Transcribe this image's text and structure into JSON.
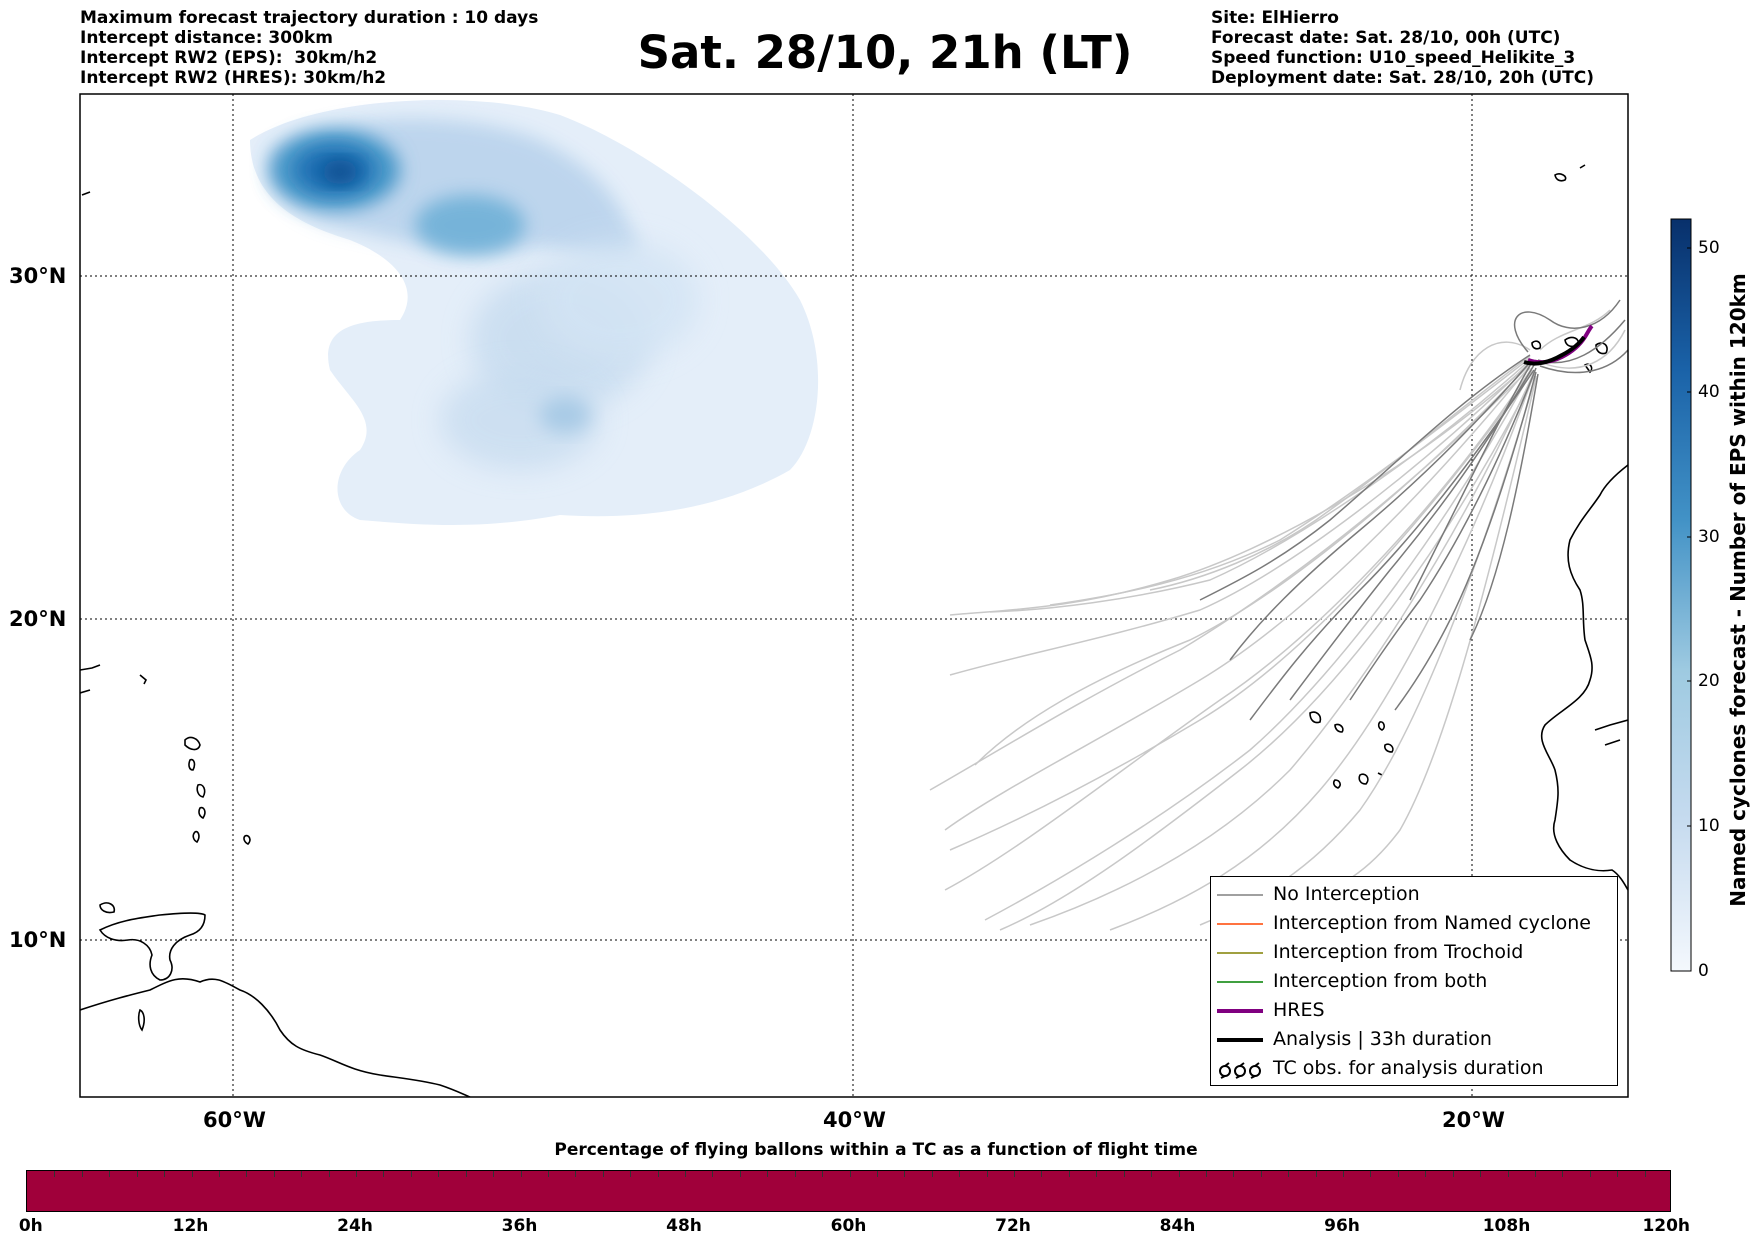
{
  "header": {
    "left": [
      "Maximum forecast trajectory duration : 10 days",
      "Intercept distance: 300km",
      "Intercept RW2 (EPS):  30km/h2",
      "Intercept RW2 (HRES): 30km/h2"
    ],
    "title": "Sat. 28/10, 21h (LT)",
    "right": [
      "Site: ElHierro",
      "Forecast date: Sat. 28/10, 00h (UTC)",
      "Speed function: U10_speed_Helikite_3",
      "Deployment date: Sat. 28/10, 20h (UTC)"
    ]
  },
  "map": {
    "lat_labels": [
      "30°N",
      "20°N",
      "10°N"
    ],
    "lon_labels": [
      "60°W",
      "40°W",
      "20°W"
    ],
    "colorbar": {
      "title": "Named cyclones forecast - Number of EPS within 120km",
      "ticks": [
        "0",
        "10",
        "20",
        "30",
        "40",
        "50"
      ],
      "color_low": "#f0f5fc",
      "color_high": "#08306b"
    },
    "legend": [
      {
        "label": "No Interception",
        "color": "#808080",
        "style": "thin"
      },
      {
        "label": "Interception from Named cyclone",
        "color": "#ff4500",
        "style": "thin"
      },
      {
        "label": "Interception from Trochoid",
        "color": "#808000",
        "style": "thin"
      },
      {
        "label": "Interception from both",
        "color": "#008000",
        "style": "thin"
      },
      {
        "label": "HRES",
        "color": "#800080",
        "style": "thick"
      },
      {
        "label": "Analysis | 33h duration",
        "color": "#000000",
        "style": "thick"
      },
      {
        "label": "TC obs. for analysis duration",
        "color": "#000000",
        "style": "symbol"
      }
    ]
  },
  "flight_bar": {
    "title": "Percentage of flying ballons within a TC as a function of flight time",
    "color": "#a0003a",
    "labels": [
      "0h",
      "12h",
      "24h",
      "36h",
      "48h",
      "60h",
      "72h",
      "84h",
      "96h",
      "108h",
      "120h"
    ]
  }
}
